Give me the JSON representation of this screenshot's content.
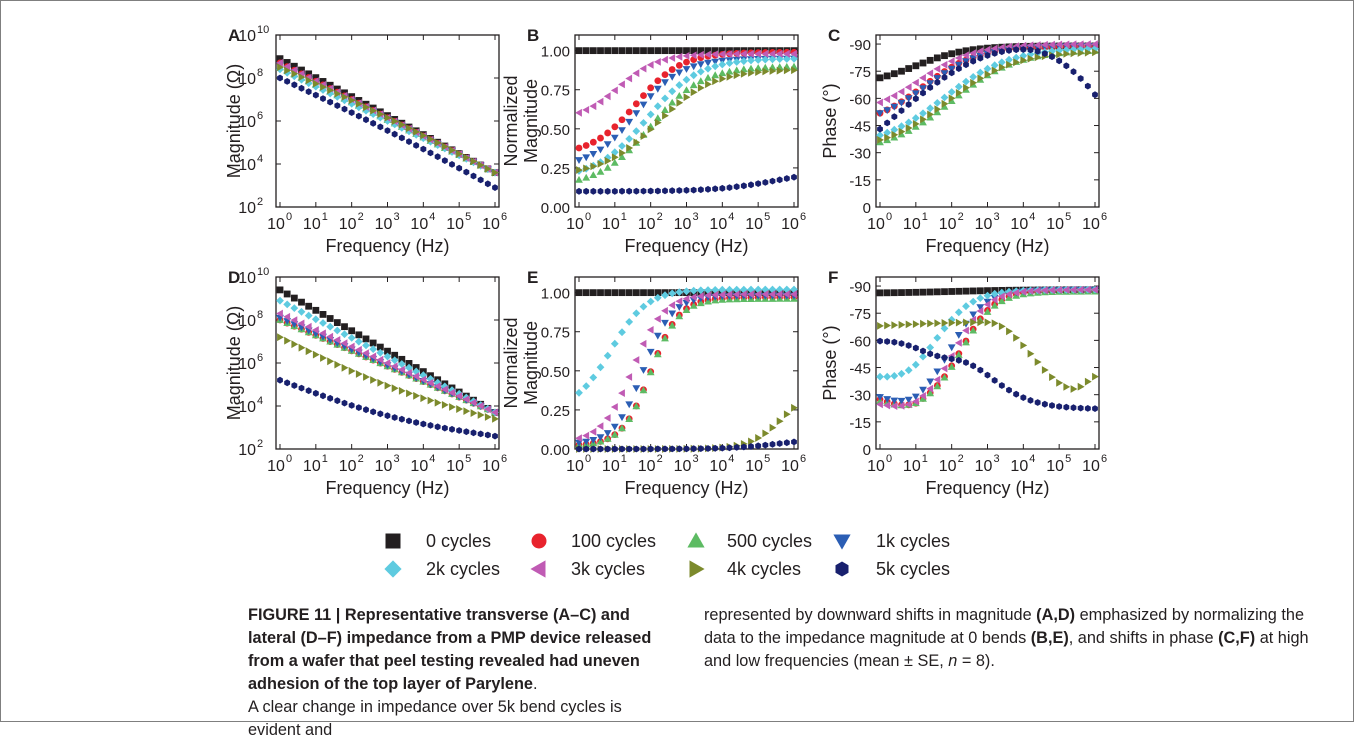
{
  "figure": {
    "legend": [
      {
        "label": "0 cycles",
        "color": "#231f20",
        "marker": "square"
      },
      {
        "label": "100 cycles",
        "color": "#e8232d",
        "marker": "circle"
      },
      {
        "label": "500 cycles",
        "color": "#5dbb63",
        "marker": "triangle-up"
      },
      {
        "label": "1k cycles",
        "color": "#2b5eb4",
        "marker": "triangle-down"
      },
      {
        "label": "2k cycles",
        "color": "#5ecbe0",
        "marker": "diamond"
      },
      {
        "label": "3k cycles",
        "color": "#c05bb4",
        "marker": "triangle-left"
      },
      {
        "label": "4k cycles",
        "color": "#7c8a2c",
        "marker": "triangle-right"
      },
      {
        "label": "5k cycles",
        "color": "#18206e",
        "marker": "hexagon"
      }
    ]
  },
  "caption": {
    "figure_label": "FIGURE 11 | Representative transverse (A–C) and lateral (D–F) impedance from a PMP device released from a wafer that peel testing revealed had uneven adhesion of the top layer of Parylene",
    "left_end": ".",
    "left_rest": "A clear change in impedance over 5k bend cycles is evident and",
    "right_1": "represented by downward shifts in magnitude ",
    "right_2": "(A,D)",
    "right_3": " emphasized by normalizing the data to the impedance magnitude at 0 bends ",
    "right_4": "(B,E)",
    "right_5": ", and shifts in phase ",
    "right_6": "(C,F)",
    "right_7": " at high and low frequencies (mean ± SE, ",
    "right_8": "n",
    "right_9": " = 8)."
  },
  "chart_data": [
    {
      "panel": "A",
      "type": "scatter",
      "xscale": "log",
      "yscale": "log",
      "xlabel": "Frequency (Hz)",
      "ylabel": "Magnitude (Ω)",
      "xlim": [
        1,
        1000000
      ],
      "ylim": [
        100,
        10000000000
      ],
      "xticks": [
        "10^0",
        "10^1",
        "10^2",
        "10^3",
        "10^4",
        "10^5",
        "10^6"
      ],
      "yticks": [
        "10^2",
        "10^4",
        "10^6",
        "10^8",
        "10^10"
      ],
      "series": [
        {
          "name": "0 cycles",
          "log_start": 8.9,
          "log_end": 3.6
        },
        {
          "name": "100 cycles",
          "log_start": 8.7,
          "log_end": 3.6
        },
        {
          "name": "500 cycles",
          "log_start": 8.5,
          "log_end": 3.6
        },
        {
          "name": "1k cycles",
          "log_start": 8.6,
          "log_end": 3.6
        },
        {
          "name": "2k cycles",
          "log_start": 8.4,
          "log_end": 3.6
        },
        {
          "name": "3k cycles",
          "log_start": 8.7,
          "log_end": 3.6
        },
        {
          "name": "4k cycles",
          "log_start": 8.5,
          "log_end": 3.6
        },
        {
          "name": "5k cycles",
          "log_start": 8.0,
          "log_end": 2.9
        }
      ]
    },
    {
      "panel": "B",
      "type": "scatter",
      "xscale": "log",
      "xlabel": "Frequency (Hz)",
      "ylabel": "Normalized Magnitude",
      "xlim": [
        1,
        1000000
      ],
      "ylim": [
        0,
        1.1
      ],
      "xticks": [
        "10^0",
        "10^1",
        "10^2",
        "10^3",
        "10^4",
        "10^5",
        "10^6"
      ],
      "yticks": [
        "0.00",
        "0.25",
        "0.50",
        "0.75",
        "1.00"
      ],
      "series": [
        {
          "name": "0 cycles",
          "curve": "flat",
          "start": 1.0,
          "end": 1.0,
          "mid": 2.0,
          "k": 1.2
        },
        {
          "name": "100 cycles",
          "curve": "sig",
          "start": 0.33,
          "end": 0.99,
          "mid": 1.6,
          "k": 1.6
        },
        {
          "name": "500 cycles",
          "curve": "sig",
          "start": 0.13,
          "end": 0.9,
          "mid": 2.0,
          "k": 1.4
        },
        {
          "name": "1k cycles",
          "curve": "sig",
          "start": 0.25,
          "end": 0.95,
          "mid": 1.6,
          "k": 1.6
        },
        {
          "name": "2k cycles",
          "curve": "sig",
          "start": 0.18,
          "end": 0.95,
          "mid": 1.9,
          "k": 1.4
        },
        {
          "name": "3k cycles",
          "curve": "sig",
          "start": 0.55,
          "end": 0.98,
          "mid": 1.1,
          "k": 1.8
        },
        {
          "name": "4k cycles",
          "curve": "sig",
          "start": 0.2,
          "end": 0.88,
          "mid": 2.2,
          "k": 1.3
        },
        {
          "name": "5k cycles",
          "curve": "tail",
          "start": 0.1,
          "end": 0.24,
          "mid": 5.5,
          "k": 1.2
        }
      ]
    },
    {
      "panel": "C",
      "type": "scatter",
      "xscale": "log",
      "xlabel": "Frequency (Hz)",
      "ylabel": "Phase (°)",
      "xlim": [
        1,
        1000000
      ],
      "ylim": [
        0,
        -95
      ],
      "xticks": [
        "10^0",
        "10^1",
        "10^2",
        "10^3",
        "10^4",
        "10^5",
        "10^6"
      ],
      "yticks": [
        "0",
        "-15",
        "-30",
        "-45",
        "-60",
        "-75",
        "-90"
      ],
      "series": [
        {
          "name": "0 cycles",
          "curve": "sig",
          "start": -67,
          "end": -89,
          "mid": 1.0,
          "k": 1.4
        },
        {
          "name": "100 cycles",
          "curve": "sig",
          "start": -44,
          "end": -89,
          "mid": 1.2,
          "k": 1.3
        },
        {
          "name": "500 cycles",
          "curve": "sig",
          "start": -30,
          "end": -87,
          "mid": 2.0,
          "k": 1.1
        },
        {
          "name": "1k cycles",
          "curve": "sig",
          "start": -45,
          "end": -89,
          "mid": 1.3,
          "k": 1.3
        },
        {
          "name": "2k cycles",
          "curve": "sig",
          "start": -33,
          "end": -88,
          "mid": 1.8,
          "k": 1.1
        },
        {
          "name": "3k cycles",
          "curve": "sig",
          "start": -50,
          "end": -90,
          "mid": 1.1,
          "k": 1.3
        },
        {
          "name": "4k cycles",
          "curve": "sig",
          "start": -31,
          "end": -86,
          "mid": 1.9,
          "k": 1.1
        },
        {
          "name": "5k cycles",
          "curve": "hump",
          "start": -43,
          "peak": -87,
          "peak_at": 4.0,
          "end": -62
        }
      ]
    },
    {
      "panel": "D",
      "type": "scatter",
      "xscale": "log",
      "yscale": "log",
      "xlabel": "Frequency (Hz)",
      "ylabel": "Magnitude (Ω)",
      "xlim": [
        1,
        1000000
      ],
      "ylim": [
        100,
        10000000000
      ],
      "xticks": [
        "10^0",
        "10^1",
        "10^2",
        "10^3",
        "10^4",
        "10^5",
        "10^6"
      ],
      "yticks": [
        "10^2",
        "10^4",
        "10^6",
        "10^8",
        "10^10"
      ],
      "series": [
        {
          "name": "0 cycles",
          "log_start": 9.4,
          "log_end": 3.7
        },
        {
          "name": "100 cycles",
          "log_start": 8.0,
          "log_end": 3.7
        },
        {
          "name": "500 cycles",
          "log_start": 8.0,
          "log_end": 3.7
        },
        {
          "name": "1k cycles",
          "log_start": 8.1,
          "log_end": 3.7
        },
        {
          "name": "2k cycles",
          "log_start": 8.9,
          "log_end": 3.7
        },
        {
          "name": "3k cycles",
          "log_start": 8.3,
          "log_end": 3.7
        },
        {
          "name": "4k cycles",
          "log_start": 7.2,
          "log_end": 3.4
        },
        {
          "name": "5k cycles",
          "log_start": 5.2,
          "log_end": 2.6
        }
      ]
    },
    {
      "panel": "E",
      "type": "scatter",
      "xscale": "log",
      "xlabel": "Frequency (Hz)",
      "ylabel": "Normalized Magnitude",
      "xlim": [
        1,
        1000000
      ],
      "ylim": [
        0,
        1.1
      ],
      "xticks": [
        "10^0",
        "10^1",
        "10^2",
        "10^3",
        "10^4",
        "10^5",
        "10^6"
      ],
      "yticks": [
        "0.00",
        "0.25",
        "0.50",
        "0.75",
        "1.00"
      ],
      "series": [
        {
          "name": "0 cycles",
          "curve": "flat",
          "start": 1.0,
          "end": 1.0,
          "mid": 2.0,
          "k": 1.2
        },
        {
          "name": "100 cycles",
          "curve": "sig",
          "start": 0.02,
          "end": 0.97,
          "mid": 2.0,
          "k": 2.5
        },
        {
          "name": "500 cycles",
          "curve": "sig",
          "start": 0.02,
          "end": 0.96,
          "mid": 2.0,
          "k": 2.5
        },
        {
          "name": "1k cycles",
          "curve": "sig",
          "start": 0.03,
          "end": 0.98,
          "mid": 1.8,
          "k": 2.5
        },
        {
          "name": "2k cycles",
          "curve": "sig",
          "start": 0.25,
          "end": 1.02,
          "mid": 0.9,
          "k": 2.0
        },
        {
          "name": "3k cycles",
          "curve": "sig",
          "start": 0.04,
          "end": 0.99,
          "mid": 1.5,
          "k": 2.3
        },
        {
          "name": "4k cycles",
          "curve": "tail",
          "start": 0.0,
          "end": 0.4,
          "mid": 5.7,
          "k": 2.2
        },
        {
          "name": "5k cycles",
          "curve": "tail",
          "start": 0.0,
          "end": 0.07,
          "mid": 5.6,
          "k": 1.5
        }
      ]
    },
    {
      "panel": "F",
      "type": "scatter",
      "xscale": "log",
      "xlabel": "Frequency (Hz)",
      "ylabel": "Phase (°)",
      "xlim": [
        1,
        1000000
      ],
      "ylim": [
        0,
        -95
      ],
      "xticks": [
        "10^0",
        "10^1",
        "10^2",
        "10^3",
        "10^4",
        "10^5",
        "10^6"
      ],
      "yticks": [
        "0",
        "-15",
        "-30",
        "-45",
        "-60",
        "-75",
        "-90"
      ],
      "series": [
        {
          "name": "0 cycles",
          "curve": "sig",
          "start": -86,
          "end": -88,
          "mid": 2.0,
          "k": 1.0
        },
        {
          "name": "100 cycles",
          "curve": "dipsig",
          "start": -27,
          "min": -22,
          "end": -88,
          "mid": 2.3,
          "k": 2.2
        },
        {
          "name": "500 cycles",
          "curve": "dipsig",
          "start": -26,
          "min": -22,
          "end": -87,
          "mid": 2.3,
          "k": 2.2
        },
        {
          "name": "1k cycles",
          "curve": "dipsig",
          "start": -28,
          "min": -23,
          "end": -88,
          "mid": 2.0,
          "k": 2.2
        },
        {
          "name": "2k cycles",
          "curve": "dipsig",
          "start": -38,
          "min": -35,
          "end": -88,
          "mid": 1.6,
          "k": 2.0
        },
        {
          "name": "3k cycles",
          "curve": "dipsig",
          "start": -24,
          "min": -21,
          "end": -88,
          "mid": 2.1,
          "k": 2.2
        },
        {
          "name": "4k cycles",
          "curve": "trough",
          "start": -68,
          "plateau": -70,
          "low": -33,
          "low_at": 5.5,
          "end": -40
        },
        {
          "name": "5k cycles",
          "curve": "decline",
          "start": -60,
          "bump": -55,
          "end": -22
        }
      ]
    }
  ]
}
